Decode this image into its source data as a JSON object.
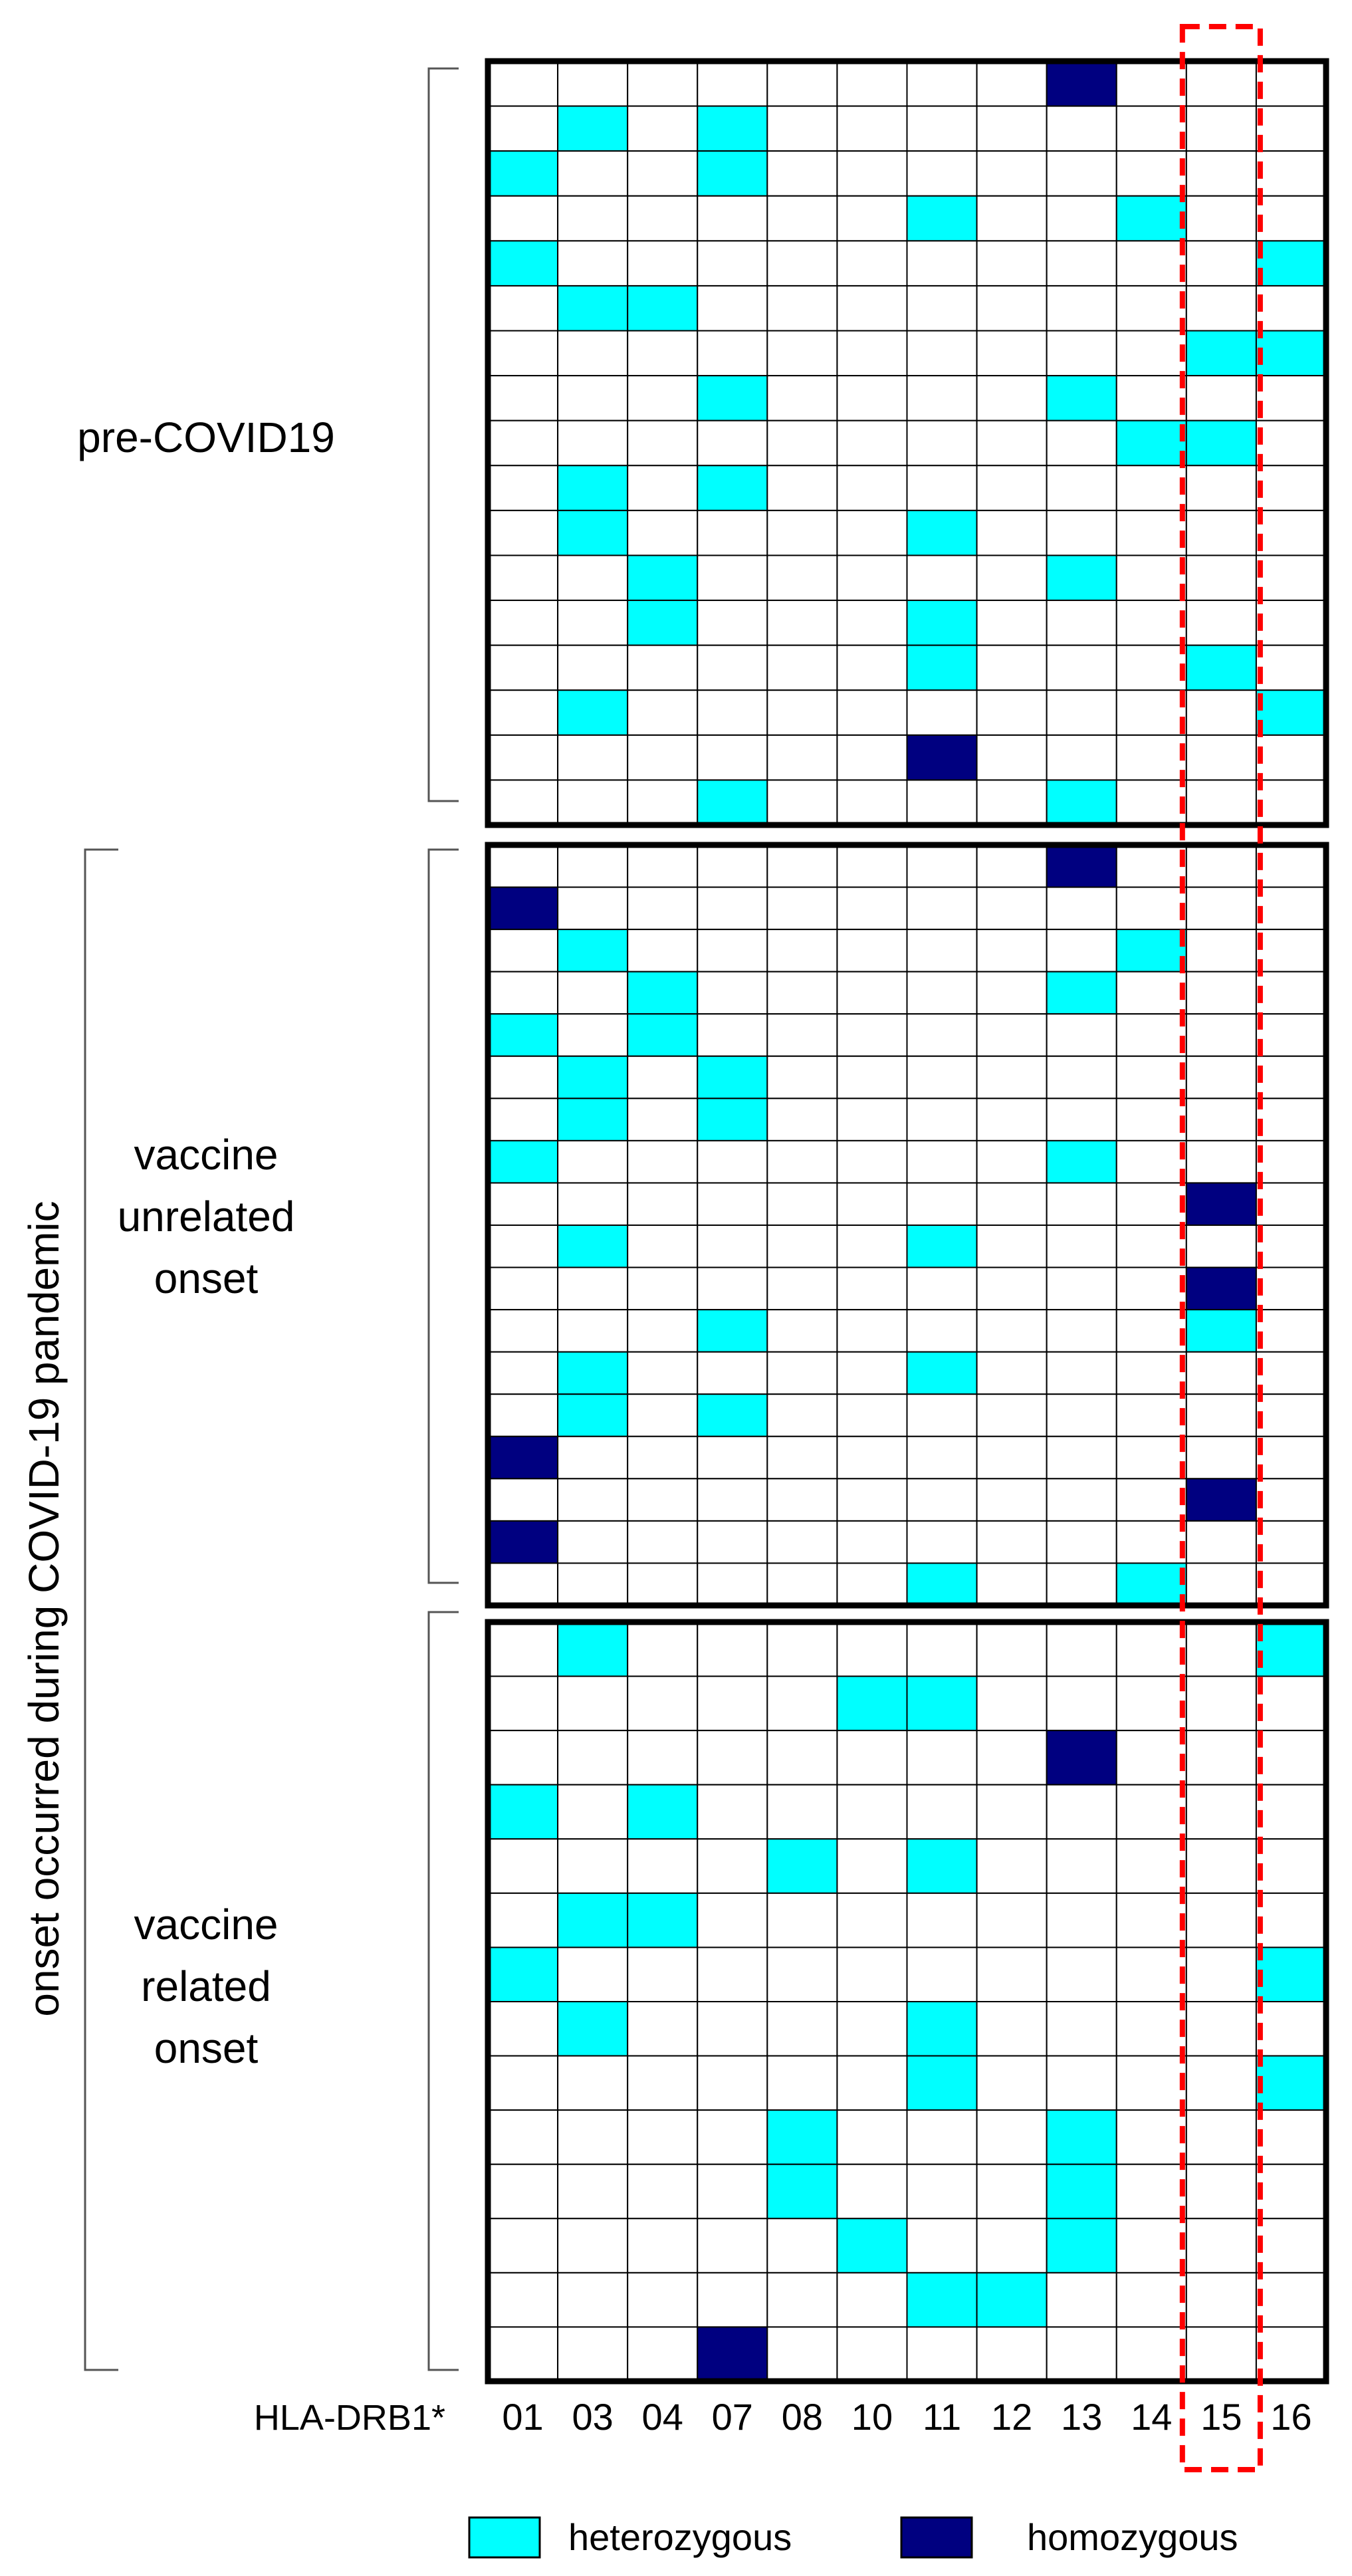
{
  "chart_data": {
    "type": "heatmap",
    "xlabel": "HLA-DRB1*",
    "alleles": [
      "01",
      "03",
      "04",
      "07",
      "08",
      "10",
      "11",
      "12",
      "13",
      "14",
      "15",
      "16"
    ],
    "highlight_allele": "15",
    "legend": {
      "position": "bottom",
      "entries": [
        {
          "key": "het",
          "label": "heterozygous",
          "color": "#00ffff"
        },
        {
          "key": "hom",
          "label": "homozygous",
          "color": "#000080"
        }
      ]
    },
    "colors": {
      "het": "#00ffff",
      "hom": "#000080",
      "empty": "#ffffff",
      "highlight": "#ff0000"
    },
    "group_label": "onset occurred during COVID-19 pandemic",
    "groups": [
      {
        "name_lines": [
          "pre-COVID19"
        ],
        "rows": [
          {
            "13": "hom"
          },
          {
            "03": "het",
            "07": "het"
          },
          {
            "01": "het",
            "07": "het"
          },
          {
            "11": "het",
            "14": "het"
          },
          {
            "01": "het",
            "16": "het"
          },
          {
            "03": "het",
            "04": "het"
          },
          {
            "15": "het",
            "16": "het"
          },
          {
            "07": "het",
            "13": "het"
          },
          {
            "14": "het",
            "15": "het"
          },
          {
            "03": "het",
            "07": "het"
          },
          {
            "03": "het",
            "11": "het"
          },
          {
            "04": "het",
            "13": "het"
          },
          {
            "04": "het",
            "11": "het"
          },
          {
            "11": "het",
            "15": "het"
          },
          {
            "03": "het",
            "16": "het"
          },
          {
            "11": "hom"
          },
          {
            "07": "het",
            "13": "het"
          }
        ]
      },
      {
        "name_lines": [
          "vaccine",
          "unrelated",
          "onset"
        ],
        "rows": [
          {
            "13": "hom"
          },
          {
            "01": "hom"
          },
          {
            "03": "het",
            "14": "het"
          },
          {
            "04": "het",
            "13": "het"
          },
          {
            "01": "het",
            "04": "het"
          },
          {
            "03": "het",
            "07": "het"
          },
          {
            "03": "het",
            "07": "het"
          },
          {
            "01": "het",
            "13": "het"
          },
          {
            "15": "hom"
          },
          {
            "03": "het",
            "11": "het"
          },
          {
            "15": "hom"
          },
          {
            "07": "het",
            "15": "het"
          },
          {
            "03": "het",
            "11": "het"
          },
          {
            "03": "het",
            "07": "het"
          },
          {
            "01": "hom"
          },
          {
            "15": "hom"
          },
          {
            "01": "hom"
          },
          {
            "11": "het",
            "14": "het"
          }
        ]
      },
      {
        "name_lines": [
          "vaccine",
          "related",
          "onset"
        ],
        "rows": [
          {
            "03": "het",
            "16": "het"
          },
          {
            "10": "het",
            "11": "het"
          },
          {
            "13": "hom"
          },
          {
            "01": "het",
            "04": "het"
          },
          {
            "08": "het",
            "11": "het"
          },
          {
            "03": "het",
            "04": "het"
          },
          {
            "01": "het",
            "16": "het"
          },
          {
            "03": "het",
            "11": "het"
          },
          {
            "11": "het",
            "16": "het"
          },
          {
            "08": "het",
            "13": "het"
          },
          {
            "08": "het",
            "13": "het"
          },
          {
            "10": "het",
            "13": "het"
          },
          {
            "11": "het",
            "12": "het"
          },
          {
            "07": "hom"
          }
        ]
      }
    ]
  }
}
